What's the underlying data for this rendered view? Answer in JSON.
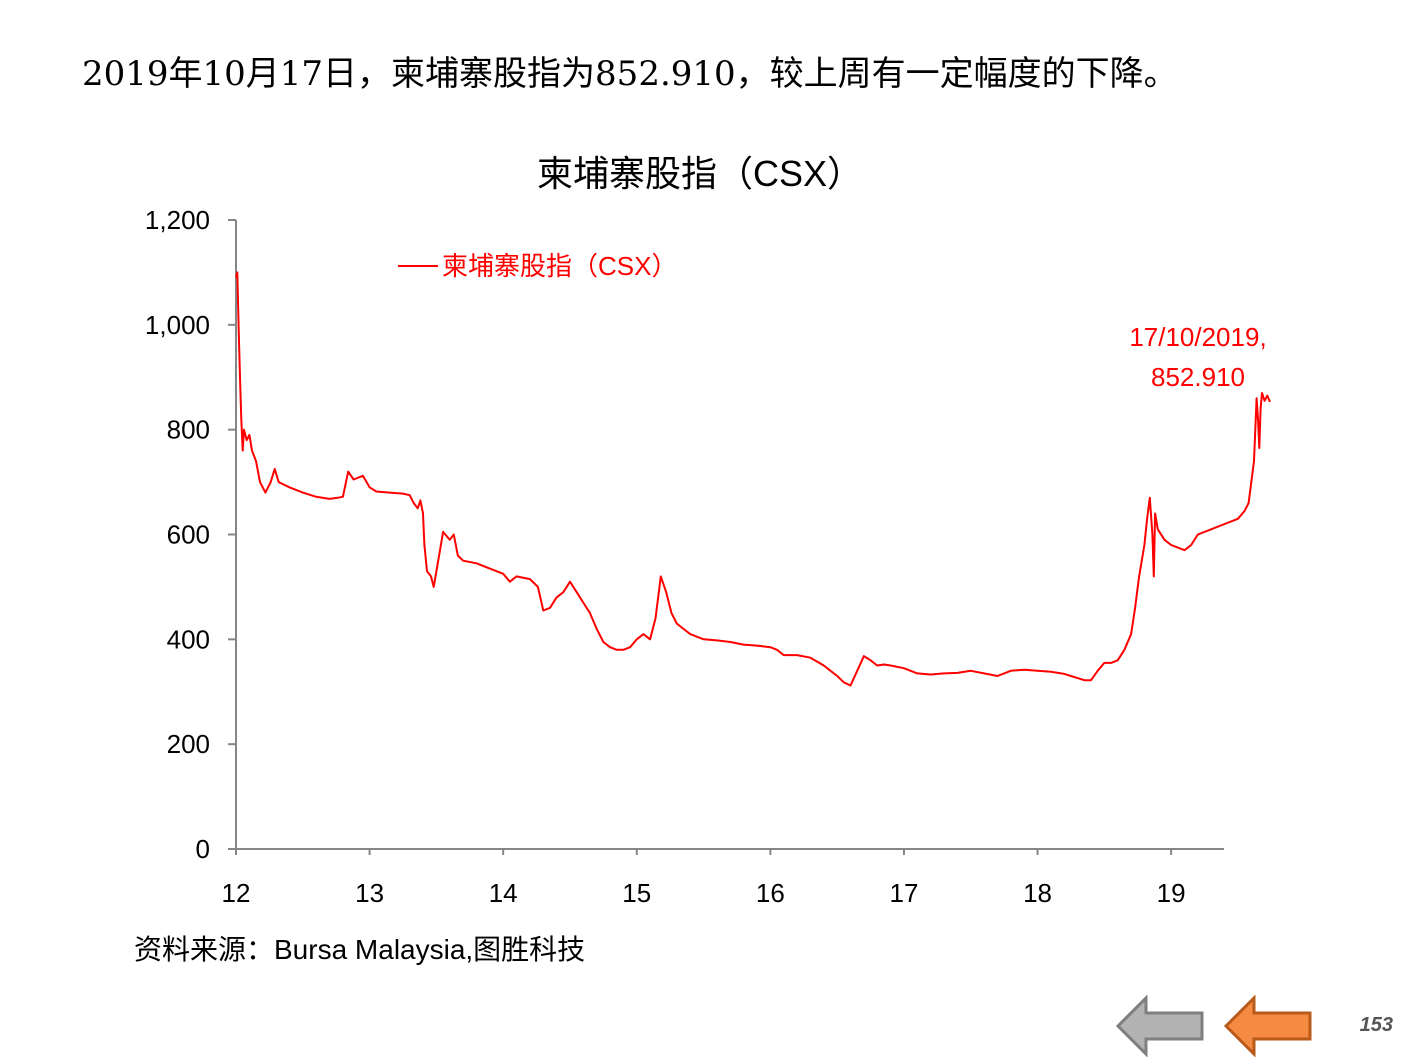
{
  "headline": "2019年10月17日，柬埔寨股指为852.910，较上周有一定幅度的下降。",
  "source": "资料来源：Bursa  Malaysia,图胜科技",
  "page_number": "153",
  "nav": {
    "prev_icon": "left-arrow-gray",
    "next_icon": "left-arrow-orange"
  },
  "colors": {
    "series": "#ff0000",
    "axis": "#868686",
    "prev_button": "#b3b3b3",
    "next_button": "#f58b43"
  },
  "chart_data": {
    "type": "line",
    "title": "柬埔寨股指（CSX）",
    "legend": {
      "position": "top-left",
      "label": "柬埔寨股指（CSX）"
    },
    "x_tick_labels": [
      "12",
      "13",
      "14",
      "15",
      "16",
      "17",
      "18",
      "19"
    ],
    "y_tick_labels": [
      "0",
      "200",
      "400",
      "600",
      "800",
      "1,000",
      "1,200"
    ],
    "ylim": [
      0,
      1200
    ],
    "xlim": [
      2012.0,
      2019.8
    ],
    "grid": false,
    "annotation": {
      "line1": "17/10/2019,",
      "line2": "852.910",
      "x": 2019.79,
      "y": 852.91
    },
    "series": [
      {
        "name": "柬埔寨股指（CSX）",
        "points": [
          [
            2012.0,
            1090
          ],
          [
            2012.01,
            1100
          ],
          [
            2012.02,
            990
          ],
          [
            2012.03,
            900
          ],
          [
            2012.04,
            820
          ],
          [
            2012.05,
            760
          ],
          [
            2012.06,
            800
          ],
          [
            2012.08,
            780
          ],
          [
            2012.1,
            790
          ],
          [
            2012.12,
            760
          ],
          [
            2012.15,
            740
          ],
          [
            2012.18,
            700
          ],
          [
            2012.22,
            680
          ],
          [
            2012.26,
            700
          ],
          [
            2012.29,
            725
          ],
          [
            2012.32,
            700
          ],
          [
            2012.4,
            690
          ],
          [
            2012.5,
            680
          ],
          [
            2012.6,
            672
          ],
          [
            2012.7,
            668
          ],
          [
            2012.76,
            670
          ],
          [
            2012.8,
            672
          ],
          [
            2012.84,
            720
          ],
          [
            2012.88,
            705
          ],
          [
            2012.95,
            712
          ],
          [
            2013.0,
            690
          ],
          [
            2013.05,
            682
          ],
          [
            2013.15,
            680
          ],
          [
            2013.25,
            678
          ],
          [
            2013.3,
            675
          ],
          [
            2013.33,
            660
          ],
          [
            2013.36,
            650
          ],
          [
            2013.38,
            665
          ],
          [
            2013.4,
            640
          ],
          [
            2013.41,
            580
          ],
          [
            2013.43,
            530
          ],
          [
            2013.46,
            520
          ],
          [
            2013.48,
            500
          ],
          [
            2013.5,
            530
          ],
          [
            2013.52,
            560
          ],
          [
            2013.55,
            605
          ],
          [
            2013.6,
            590
          ],
          [
            2013.63,
            600
          ],
          [
            2013.66,
            560
          ],
          [
            2013.7,
            550
          ],
          [
            2013.8,
            545
          ],
          [
            2013.9,
            535
          ],
          [
            2014.0,
            525
          ],
          [
            2014.05,
            510
          ],
          [
            2014.1,
            520
          ],
          [
            2014.2,
            515
          ],
          [
            2014.26,
            500
          ],
          [
            2014.3,
            455
          ],
          [
            2014.35,
            460
          ],
          [
            2014.4,
            480
          ],
          [
            2014.45,
            490
          ],
          [
            2014.5,
            510
          ],
          [
            2014.55,
            490
          ],
          [
            2014.6,
            470
          ],
          [
            2014.65,
            450
          ],
          [
            2014.7,
            420
          ],
          [
            2014.75,
            395
          ],
          [
            2014.8,
            385
          ],
          [
            2014.85,
            380
          ],
          [
            2014.9,
            380
          ],
          [
            2014.95,
            385
          ],
          [
            2015.0,
            400
          ],
          [
            2015.05,
            410
          ],
          [
            2015.1,
            400
          ],
          [
            2015.14,
            440
          ],
          [
            2015.18,
            520
          ],
          [
            2015.22,
            490
          ],
          [
            2015.26,
            450
          ],
          [
            2015.3,
            430
          ],
          [
            2015.35,
            420
          ],
          [
            2015.4,
            410
          ],
          [
            2015.45,
            405
          ],
          [
            2015.5,
            400
          ],
          [
            2015.6,
            398
          ],
          [
            2015.7,
            395
          ],
          [
            2015.8,
            390
          ],
          [
            2015.9,
            388
          ],
          [
            2016.0,
            385
          ],
          [
            2016.05,
            380
          ],
          [
            2016.1,
            370
          ],
          [
            2016.2,
            370
          ],
          [
            2016.3,
            365
          ],
          [
            2016.4,
            350
          ],
          [
            2016.45,
            340
          ],
          [
            2016.5,
            330
          ],
          [
            2016.55,
            318
          ],
          [
            2016.6,
            312
          ],
          [
            2016.65,
            340
          ],
          [
            2016.7,
            368
          ],
          [
            2016.75,
            360
          ],
          [
            2016.8,
            350
          ],
          [
            2016.85,
            352
          ],
          [
            2016.9,
            350
          ],
          [
            2017.0,
            345
          ],
          [
            2017.1,
            335
          ],
          [
            2017.2,
            333
          ],
          [
            2017.3,
            335
          ],
          [
            2017.4,
            336
          ],
          [
            2017.5,
            340
          ],
          [
            2017.6,
            335
          ],
          [
            2017.7,
            330
          ],
          [
            2017.75,
            335
          ],
          [
            2017.8,
            340
          ],
          [
            2017.9,
            342
          ],
          [
            2018.0,
            340
          ],
          [
            2018.1,
            338
          ],
          [
            2018.2,
            334
          ],
          [
            2018.25,
            330
          ],
          [
            2018.3,
            326
          ],
          [
            2018.35,
            322
          ],
          [
            2018.4,
            322
          ],
          [
            2018.45,
            340
          ],
          [
            2018.5,
            355
          ],
          [
            2018.55,
            355
          ],
          [
            2018.6,
            360
          ],
          [
            2018.65,
            380
          ],
          [
            2018.7,
            410
          ],
          [
            2018.73,
            460
          ],
          [
            2018.76,
            520
          ],
          [
            2018.8,
            580
          ],
          [
            2018.82,
            630
          ],
          [
            2018.84,
            670
          ],
          [
            2018.86,
            600
          ],
          [
            2018.87,
            520
          ],
          [
            2018.88,
            640
          ],
          [
            2018.9,
            610
          ],
          [
            2018.95,
            590
          ],
          [
            2019.0,
            580
          ],
          [
            2019.05,
            575
          ],
          [
            2019.1,
            570
          ],
          [
            2019.15,
            580
          ],
          [
            2019.2,
            600
          ],
          [
            2019.3,
            610
          ],
          [
            2019.4,
            620
          ],
          [
            2019.45,
            625
          ],
          [
            2019.5,
            630
          ],
          [
            2019.55,
            645
          ],
          [
            2019.58,
            660
          ],
          [
            2019.6,
            700
          ],
          [
            2019.62,
            740
          ],
          [
            2019.63,
            800
          ],
          [
            2019.64,
            860
          ],
          [
            2019.65,
            820
          ],
          [
            2019.66,
            765
          ],
          [
            2019.67,
            840
          ],
          [
            2019.68,
            870
          ],
          [
            2019.7,
            855
          ],
          [
            2019.72,
            865
          ],
          [
            2019.74,
            852.91
          ]
        ]
      }
    ]
  }
}
